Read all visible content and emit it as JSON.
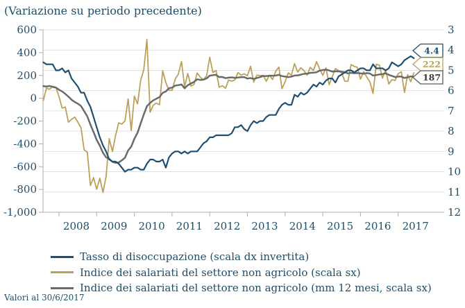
{
  "title": "(Variazione su periodo precedente)",
  "footnote": "Valori al 30/6/2017",
  "chart_data": {
    "type": "line",
    "title": "(Variazione su periodo precedente)",
    "x": {
      "start": "2007-08",
      "end": "2017-06",
      "freq": "monthly"
    },
    "x_axis": {
      "tick_labels": [
        "2008",
        "2009",
        "2010",
        "2011",
        "2012",
        "2013",
        "2014",
        "2015",
        "2016",
        "2017"
      ]
    },
    "left_axis": {
      "range": [
        -1000,
        600
      ],
      "tick_labels": [
        "600",
        "400",
        "200",
        "0",
        "-200",
        "-400",
        "-600",
        "-800",
        "-1,000"
      ]
    },
    "right_axis": {
      "range": [
        3,
        12
      ],
      "inverted": true,
      "tick_labels": [
        "3",
        "4",
        "5",
        "6",
        "7",
        "8",
        "9",
        "10",
        "11",
        "12"
      ]
    },
    "grid": "horizontal-right-axis-units",
    "legend_position": "bottom",
    "series": [
      {
        "name": "Tasso di disoccupazione (scala dx invertita)",
        "axis": "right",
        "color": "#1D4F72",
        "values": [
          4.6,
          4.7,
          4.7,
          4.7,
          5.0,
          5.0,
          4.9,
          5.1,
          5.0,
          5.4,
          5.6,
          5.8,
          6.1,
          6.1,
          6.5,
          6.8,
          7.3,
          7.8,
          8.3,
          8.7,
          9.0,
          9.4,
          9.5,
          9.5,
          9.6,
          9.8,
          10.0,
          9.9,
          9.9,
          9.8,
          9.8,
          9.9,
          9.9,
          9.6,
          9.4,
          9.4,
          9.5,
          9.5,
          9.4,
          9.8,
          9.3,
          9.1,
          9.0,
          9.0,
          9.1,
          9.0,
          9.1,
          9.0,
          9.0,
          9.0,
          8.8,
          8.6,
          8.5,
          8.3,
          8.3,
          8.2,
          8.2,
          8.2,
          8.2,
          8.2,
          8.1,
          7.8,
          7.8,
          7.7,
          7.9,
          8.0,
          7.7,
          7.5,
          7.6,
          7.5,
          7.5,
          7.3,
          7.2,
          7.2,
          7.2,
          6.9,
          6.7,
          6.6,
          6.7,
          6.7,
          6.2,
          6.3,
          6.1,
          6.2,
          6.1,
          5.9,
          5.7,
          5.8,
          5.6,
          5.7,
          5.5,
          5.4,
          5.4,
          5.6,
          5.3,
          5.2,
          5.1,
          5.0,
          5.0,
          5.1,
          5.0,
          4.9,
          4.9,
          5.0,
          5.0,
          4.7,
          4.9,
          4.9,
          4.9,
          5.0,
          4.9,
          4.6,
          4.7,
          4.8,
          4.7,
          4.5,
          4.4,
          4.3,
          4.4
        ]
      },
      {
        "name": "Indice dei salariati del settore non agricolo (scala sx)",
        "axis": "left",
        "color": "#BCA05A",
        "values": [
          -20,
          88,
          79,
          104,
          97,
          15,
          -86,
          -78,
          -210,
          -185,
          -165,
          -210,
          -259,
          -452,
          -474,
          -765,
          -697,
          -798,
          -701,
          -826,
          -684,
          -354,
          -467,
          -327,
          -216,
          -227,
          -198,
          -6,
          -283,
          18,
          -50,
          156,
          251,
          516,
          -122,
          -61,
          -42,
          -57,
          241,
          137,
          71,
          70,
          168,
          212,
          322,
          102,
          217,
          106,
          122,
          221,
          183,
          164,
          196,
          360,
          226,
          243,
          96,
          110,
          88,
          160,
          150,
          161,
          225,
          203,
          214,
          197,
          280,
          141,
          203,
          199,
          201,
          149,
          202,
          164,
          237,
          274,
          84,
          144,
          222,
          203,
          304,
          229,
          267,
          243,
          203,
          271,
          243,
          321,
          256,
          201,
          266,
          119,
          187,
          260,
          245,
          223,
          150,
          149,
          295,
          280,
          271,
          168,
          233,
          186,
          144,
          43,
          297,
          291,
          176,
          249,
          124,
          164,
          155,
          216,
          232,
          50,
          207,
          145,
          222
        ]
      },
      {
        "name": "Indice dei salariati del settore non agricolo (mm 12 mesi, scala sx)",
        "axis": "left",
        "color": "#6A6A6A",
        "values": [
          107,
          102,
          108,
          100,
          93,
          75,
          60,
          38,
          14,
          -13,
          -33,
          -48,
          -68,
          -113,
          -159,
          -231,
          -297,
          -365,
          -416,
          -479,
          -518,
          -532,
          -557,
          -567,
          -563,
          -545,
          -522,
          -458,
          -424,
          -356,
          -302,
          -220,
          -142,
          -69,
          -41,
          -19,
          -4,
          10,
          47,
          59,
          88,
          93,
          111,
          115,
          121,
          87,
          115,
          129,
          143,
          166,
          161,
          163,
          174,
          198,
          203,
          205,
          186,
          187,
          176,
          181,
          183,
          178,
          182,
          185,
          186,
          173,
          177,
          169,
          178,
          185,
          195,
          194,
          198,
          198,
          199,
          205,
          194,
          190,
          185,
          190,
          199,
          201,
          207,
          214,
          215,
          223,
          224,
          228,
          242,
          247,
          251,
          244,
          234,
          236,
          235,
          233,
          228,
          218,
          223,
          219,
          221,
          218,
          215,
          221,
          217,
          199,
          203,
          209,
          211,
          219,
          205,
          196,
          186,
          190,
          190,
          178,
          184,
          192,
          187
        ]
      }
    ],
    "end_labels": [
      {
        "value": "4.4",
        "color": "#1D4F72",
        "text_color": "#1D4F72"
      },
      {
        "value": "222",
        "color": "#BCA05A",
        "text_color": "#BCA05A"
      },
      {
        "value": "187",
        "color": "#595959",
        "text_color": "#3B3B3B"
      }
    ]
  }
}
